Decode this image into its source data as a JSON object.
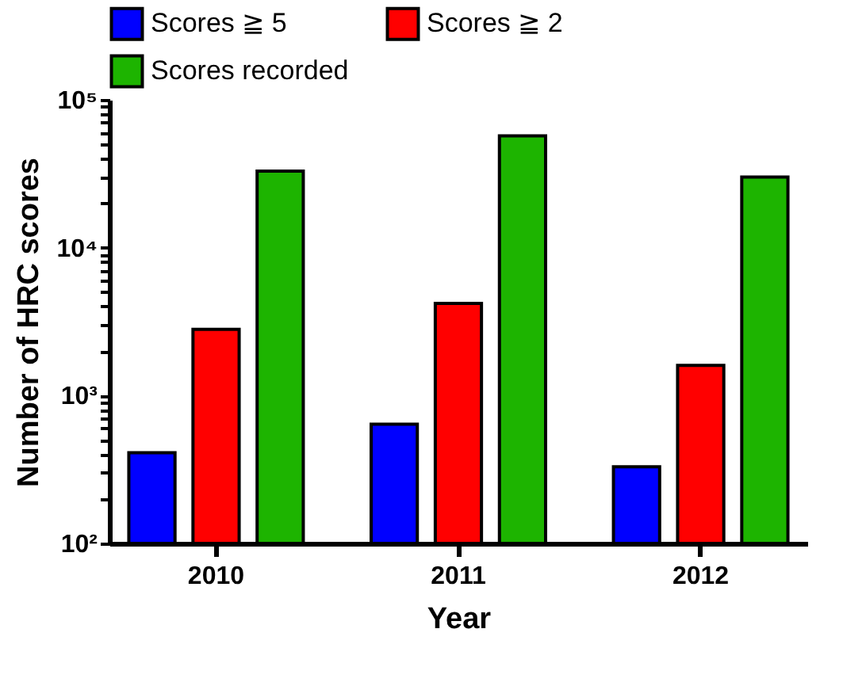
{
  "chart_data": {
    "type": "bar",
    "xlabel": "Year",
    "ylabel": "Number of HRC scores",
    "categories": [
      "2010",
      "2011",
      "2012"
    ],
    "series": [
      {
        "name": "Scores ≧ 5",
        "color": "#0000ff",
        "values": [
          410,
          640,
          330
        ]
      },
      {
        "name": "Scores ≧ 2",
        "color": "#ff0000",
        "values": [
          2800,
          4200,
          1600
        ]
      },
      {
        "name": "Scores recorded",
        "color": "#1db400",
        "values": [
          33000,
          57000,
          30000
        ]
      }
    ],
    "log": "y",
    "ylim": [
      100,
      100000
    ],
    "yticks": [
      {
        "value": 100,
        "label": "10²"
      },
      {
        "value": 200,
        "label": null
      },
      {
        "value": 300,
        "label": null
      },
      {
        "value": 400,
        "label": null
      },
      {
        "value": 500,
        "label": null
      },
      {
        "value": 600,
        "label": null
      },
      {
        "value": 700,
        "label": null
      },
      {
        "value": 800,
        "label": null
      },
      {
        "value": 900,
        "label": null
      },
      {
        "value": 1000,
        "label": "10³"
      },
      {
        "value": 2000,
        "label": null
      },
      {
        "value": 3000,
        "label": null
      },
      {
        "value": 4000,
        "label": null
      },
      {
        "value": 5000,
        "label": null
      },
      {
        "value": 6000,
        "label": null
      },
      {
        "value": 7000,
        "label": null
      },
      {
        "value": 8000,
        "label": null
      },
      {
        "value": 9000,
        "label": null
      },
      {
        "value": 10000,
        "label": "10⁴"
      },
      {
        "value": 20000,
        "label": null
      },
      {
        "value": 30000,
        "label": null
      },
      {
        "value": 40000,
        "label": null
      },
      {
        "value": 50000,
        "label": null
      },
      {
        "value": 60000,
        "label": null
      },
      {
        "value": 70000,
        "label": null
      },
      {
        "value": 80000,
        "label": null
      },
      {
        "value": 90000,
        "label": null
      },
      {
        "value": 100000,
        "label": "10⁵"
      }
    ],
    "legend": "top",
    "grid": false
  }
}
